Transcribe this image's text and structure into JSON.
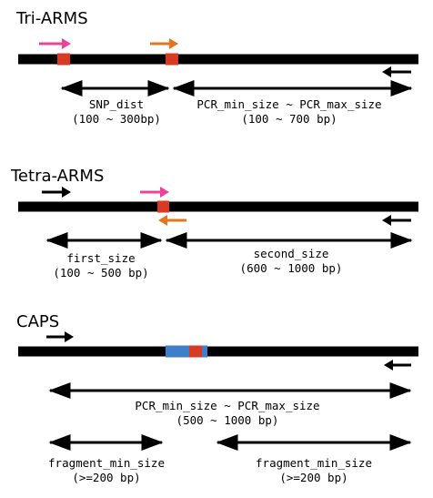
{
  "colors": {
    "line": "#000000",
    "snp": "#d93a24",
    "pink_primer": "#e8459a",
    "orange_primer": "#e0771f",
    "enzyme_site": "#3f7ec9"
  },
  "tri_arms": {
    "title": "Tri-ARMS",
    "label_left": "SNP_dist",
    "range_left": "(100 ~ 300bp)",
    "label_right": "PCR_min_size ~ PCR_max_size",
    "range_right": "(100 ~ 700 bp)"
  },
  "tetra_arms": {
    "title": "Tetra-ARMS",
    "label_left": "first_size",
    "range_left": "(100 ~ 500 bp)",
    "label_right": "second_size",
    "range_right": "(600 ~ 1000 bp)"
  },
  "caps": {
    "title": "CAPS",
    "label_full": "PCR_min_size ~ PCR_max_size",
    "range_full": "(500 ~ 1000 bp)",
    "label_left": "fragment_min_size",
    "range_left": "(>=200 bp)",
    "label_right": "fragment_min_size",
    "range_right": "(>=200 bp)"
  }
}
